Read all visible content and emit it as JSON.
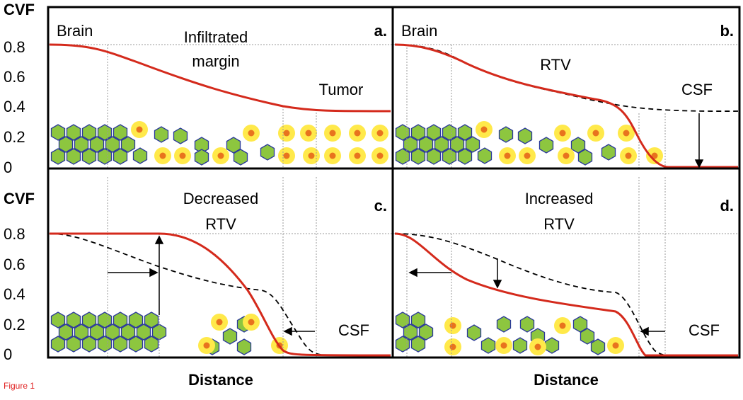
{
  "figure": {
    "caption": "Figure 1",
    "rows": [
      {
        "y_label": "CVF",
        "y_ticks": [
          "0.8",
          "0.6",
          "0.4",
          "0.2",
          "0"
        ]
      },
      {
        "y_label": "CVF",
        "y_ticks": [
          "0.8",
          "0.6",
          "0.4",
          "0.2",
          "0"
        ],
        "x_labels": [
          "Distance",
          "Distance"
        ]
      }
    ],
    "panels": [
      {
        "letter": "a.",
        "labels": [
          "Brain",
          "Infiltrated",
          "margin",
          "Tumor"
        ]
      },
      {
        "letter": "b.",
        "labels": [
          "Brain",
          "RTV",
          "CSF"
        ]
      },
      {
        "letter": "c.",
        "labels": [
          "Decreased",
          "RTV",
          "CSF"
        ]
      },
      {
        "letter": "d.",
        "labels": [
          "Increased",
          "RTV",
          "CSF"
        ]
      }
    ]
  }
}
